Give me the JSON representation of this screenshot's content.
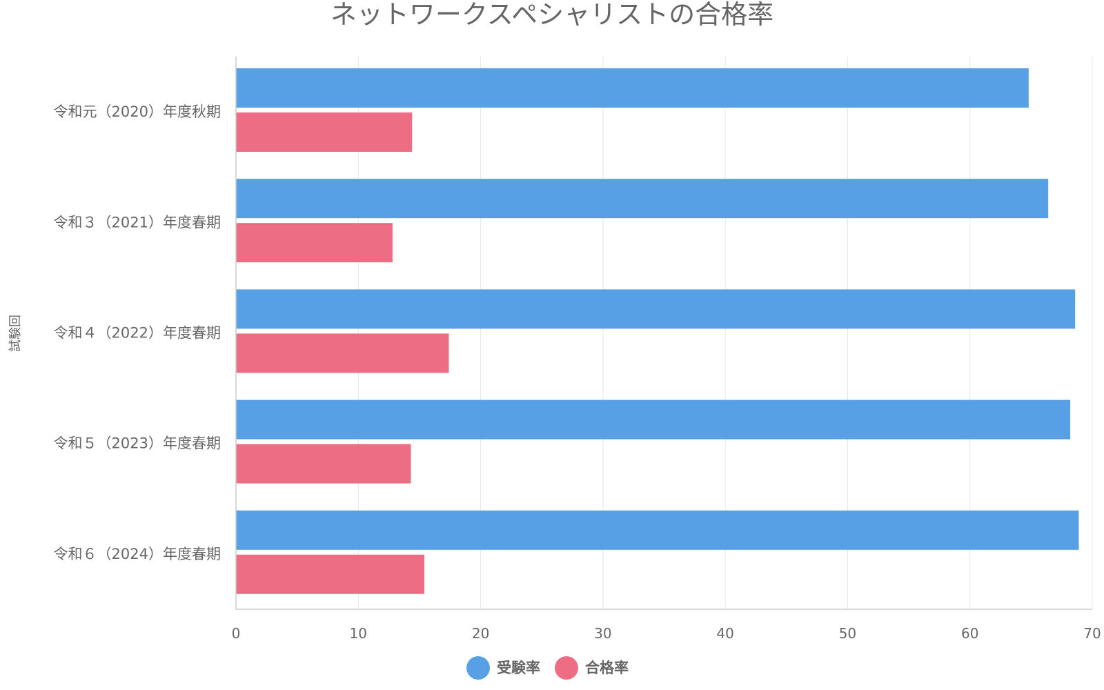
{
  "chart_data": {
    "type": "bar",
    "orientation": "horizontal",
    "title": "ネットワークスペシャリストの合格率",
    "ylabel": "試験回",
    "xlabel": "",
    "categories": [
      "令和元（2020）年度秋期",
      "令和３（2021）年度春期",
      "令和４（2022）年度春期",
      "令和５（2023）年度春期",
      "令和６（2024）年度春期"
    ],
    "series": [
      {
        "name": "受験率",
        "color": "#57A0E5",
        "values": [
          64.8,
          66.4,
          68.6,
          68.2,
          68.9
        ]
      },
      {
        "name": "合格率",
        "color": "#ED6D85",
        "values": [
          14.4,
          12.8,
          17.4,
          14.3,
          15.4
        ]
      }
    ],
    "xlim": [
      0,
      70
    ],
    "ticks": [
      "0",
      "10",
      "20",
      "30",
      "40",
      "50",
      "60",
      "70"
    ],
    "grid": true,
    "legend": "bottom-center"
  }
}
